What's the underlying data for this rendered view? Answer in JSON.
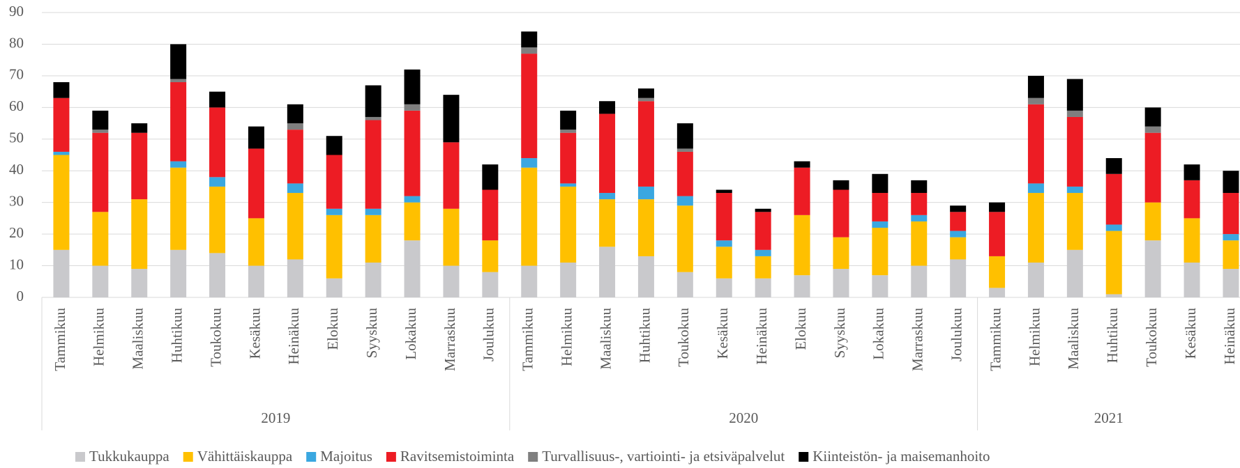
{
  "chart_data": {
    "type": "stacked_bar",
    "groups": [
      {
        "name": "2019",
        "categories": [
          "Tammikuu",
          "Helmikuu",
          "Maaliskuu",
          "Huhtikuu",
          "Toukokuu",
          "Kesäkuu",
          "Heinäkuu",
          "Elokuu",
          "Syyskuu",
          "Lokakuu",
          "Marraskuu",
          "Joulukuu"
        ]
      },
      {
        "name": "2020",
        "categories": [
          "Tammikuu",
          "Helmikuu",
          "Maaliskuu",
          "Huhtikuu",
          "Toukokuu",
          "Kesäkuu",
          "Heinäkuu",
          "Elokuu",
          "Syyskuu",
          "Lokakuu",
          "Marraskuu",
          "Joulukuu"
        ]
      },
      {
        "name": "2021",
        "categories": [
          "Tammikuu",
          "Helmikuu",
          "Maaliskuu",
          "Huhtikuu",
          "Toukokuu",
          "Kesäkuu",
          "Heinäkuu"
        ]
      }
    ],
    "series": [
      {
        "name": "Tukkukauppa",
        "color": "#c9c9cc",
        "values": [
          15,
          10,
          9,
          15,
          14,
          10,
          12,
          6,
          11,
          18,
          10,
          8,
          10,
          11,
          16,
          13,
          8,
          6,
          6,
          7,
          9,
          7,
          10,
          12,
          3,
          11,
          15,
          1,
          18,
          11,
          9
        ]
      },
      {
        "name": "Vähittäiskauppa",
        "color": "#ffc000",
        "values": [
          30,
          17,
          22,
          26,
          21,
          15,
          21,
          20,
          15,
          12,
          18,
          10,
          31,
          24,
          15,
          18,
          21,
          10,
          7,
          19,
          10,
          15,
          14,
          7,
          10,
          22,
          18,
          20,
          12,
          14,
          9
        ]
      },
      {
        "name": "Majoitus",
        "color": "#3aa7e0",
        "values": [
          1,
          0,
          0,
          2,
          3,
          0,
          3,
          2,
          2,
          2,
          0,
          0,
          3,
          1,
          2,
          4,
          3,
          2,
          2,
          0,
          0,
          2,
          2,
          2,
          0,
          3,
          2,
          2,
          0,
          0,
          2
        ]
      },
      {
        "name": "Ravitsemistoiminta",
        "color": "#ed1c24",
        "values": [
          17,
          25,
          21,
          25,
          22,
          22,
          17,
          17,
          28,
          27,
          21,
          16,
          33,
          16,
          25,
          27,
          14,
          15,
          12,
          15,
          15,
          9,
          7,
          6,
          14,
          25,
          22,
          16,
          22,
          12,
          13
        ]
      },
      {
        "name": "Turvallisuus-, vartiointi- ja etsiväpalvelut",
        "color": "#7f7f7f",
        "values": [
          0,
          1,
          0,
          1,
          0,
          0,
          2,
          0,
          1,
          2,
          0,
          0,
          2,
          1,
          0,
          1,
          1,
          0,
          0,
          0,
          0,
          0,
          0,
          0,
          0,
          2,
          2,
          0,
          2,
          0,
          0
        ]
      },
      {
        "name": "Kiinteistön- ja maisemanhoito",
        "color": "#000000",
        "values": [
          5,
          6,
          3,
          11,
          5,
          7,
          6,
          6,
          10,
          11,
          15,
          8,
          5,
          6,
          4,
          3,
          8,
          1,
          1,
          2,
          3,
          6,
          4,
          2,
          3,
          7,
          10,
          5,
          6,
          5,
          7
        ]
      }
    ],
    "ylim": [
      0,
      90
    ],
    "yticks": [
      0,
      10,
      20,
      30,
      40,
      50,
      60,
      70,
      80,
      90
    ],
    "grid": true,
    "legend": "bottom"
  }
}
